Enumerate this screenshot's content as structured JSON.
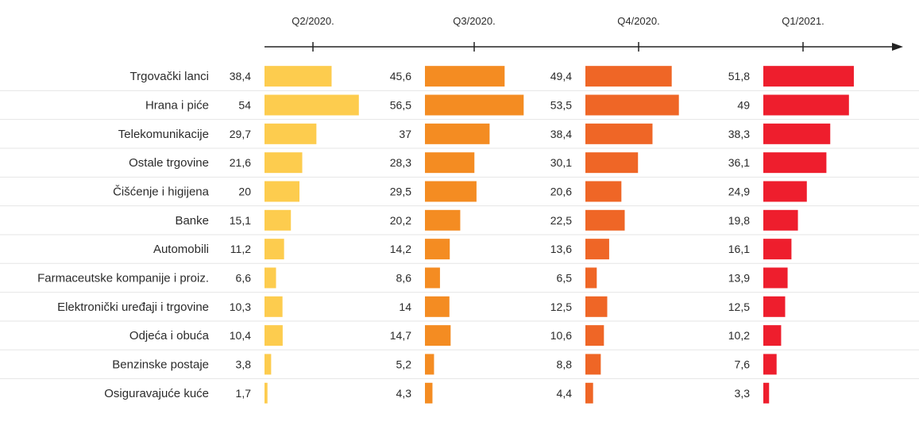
{
  "chart_data": {
    "type": "bar",
    "title": "",
    "xlabel": "",
    "ylabel": "",
    "grid": false,
    "categories": [
      "Trgovački lanci",
      "Hrana i piće",
      "Telekomunikacije",
      "Ostale trgovine",
      "Čišćenje i higijena",
      "Banke",
      "Automobili",
      "Farmaceutske kompanije i proiz.",
      "Elektronički uređaji i trgovine",
      "Odjeća i obuća",
      "Benzinske postaje",
      "Osiguravajuće kuće"
    ],
    "series": [
      {
        "name": "Q2/2020.",
        "color": "#fdcc4e",
        "values": [
          38.4,
          54,
          29.7,
          21.6,
          20,
          15.1,
          11.2,
          6.6,
          10.3,
          10.4,
          3.8,
          1.7
        ],
        "labels": [
          "38,4",
          "54",
          "29,7",
          "21,6",
          "20",
          "15,1",
          "11,2",
          "6,6",
          "10,3",
          "10,4",
          "3,8",
          "1,7"
        ]
      },
      {
        "name": "Q3/2020.",
        "color": "#f48c22",
        "values": [
          45.6,
          56.5,
          37,
          28.3,
          29.5,
          20.2,
          14.2,
          8.6,
          14,
          14.7,
          5.2,
          4.3
        ],
        "labels": [
          "45,6",
          "56,5",
          "37",
          "28,3",
          "29,5",
          "20,2",
          "14,2",
          "8,6",
          "14",
          "14,7",
          "5,2",
          "4,3"
        ]
      },
      {
        "name": "Q4/2020.",
        "color": "#ef6626",
        "values": [
          49.4,
          53.5,
          38.4,
          30.1,
          20.6,
          22.5,
          13.6,
          6.5,
          12.5,
          10.6,
          8.8,
          4.4
        ],
        "labels": [
          "49,4",
          "53,5",
          "38,4",
          "30,1",
          "20,6",
          "22,5",
          "13,6",
          "6,5",
          "12,5",
          "10,6",
          "8,8",
          "4,4"
        ]
      },
      {
        "name": "Q1/2021.",
        "color": "#ee1e2d",
        "values": [
          51.8,
          49,
          38.3,
          36.1,
          24.9,
          19.8,
          16.1,
          13.9,
          12.5,
          10.2,
          7.6,
          3.3
        ],
        "labels": [
          "51,8",
          "49",
          "38,3",
          "36,1",
          "24,9",
          "19,8",
          "16,1",
          "13,9",
          "12,5",
          "10,2",
          "7,6",
          "3,3"
        ]
      }
    ],
    "row_separator_color": "#e6e6e6",
    "axis_color": "#222222"
  }
}
